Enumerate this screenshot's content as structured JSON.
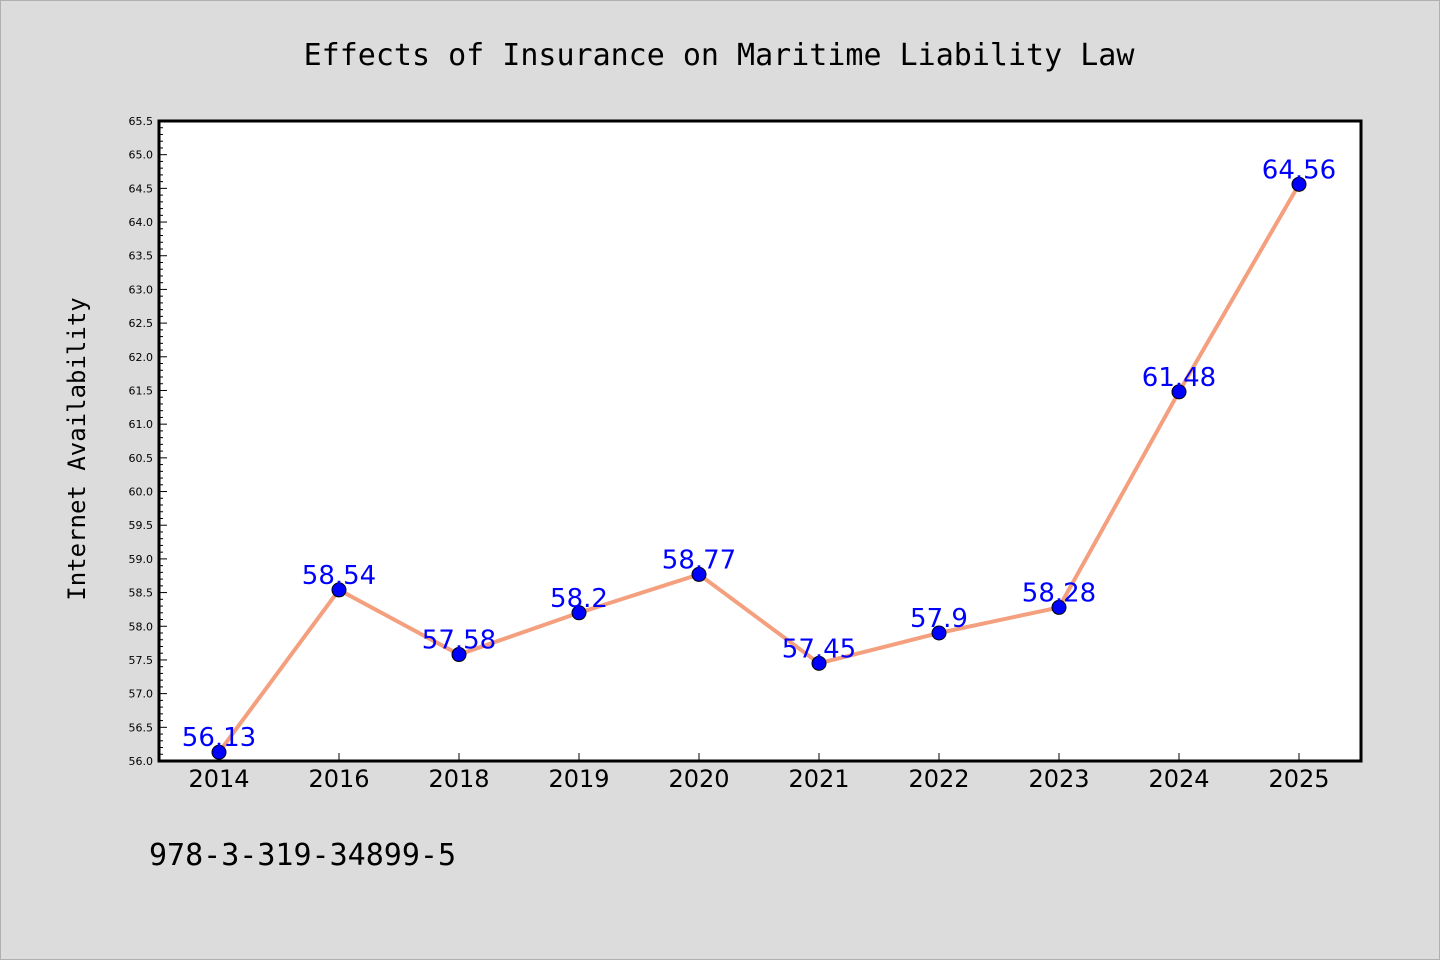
{
  "chart_data": {
    "type": "line",
    "title": "Effects of Insurance on Maritime Liability Law",
    "xlabel": "",
    "ylabel": "Internet Availability",
    "categories": [
      "2014",
      "2016",
      "2018",
      "2019",
      "2020",
      "2021",
      "2022",
      "2023",
      "2024",
      "2025"
    ],
    "series": [
      {
        "values": [
          56.13,
          58.54,
          57.58,
          58.2,
          58.77,
          57.45,
          57.9,
          58.28,
          61.48,
          64.56
        ],
        "data_labels": [
          "56.13",
          "58.54",
          "57.58",
          "58.2",
          "58.77",
          "57.45",
          "57.9",
          "58.28",
          "61.48",
          "64.56"
        ],
        "line_color": "#f4a07e",
        "marker_color": "#0000ff"
      }
    ],
    "ylim": [
      56.0,
      65.5
    ],
    "yticks": [
      "56.0",
      "56.5",
      "57.0",
      "57.5",
      "58.0",
      "58.5",
      "59.0",
      "59.5",
      "60.0",
      "60.5",
      "61.0",
      "61.5",
      "62.0",
      "62.5",
      "63.0",
      "63.5",
      "64.0",
      "64.5",
      "65.0",
      "65.5"
    ],
    "grid": false,
    "legend": "none",
    "label_color": "#0000ff"
  },
  "footer": {
    "isbn": "978-3-319-34899-5"
  },
  "colors": {
    "background": "#dcdcdc",
    "plot_background": "#ffffff",
    "axes": "#000000"
  }
}
